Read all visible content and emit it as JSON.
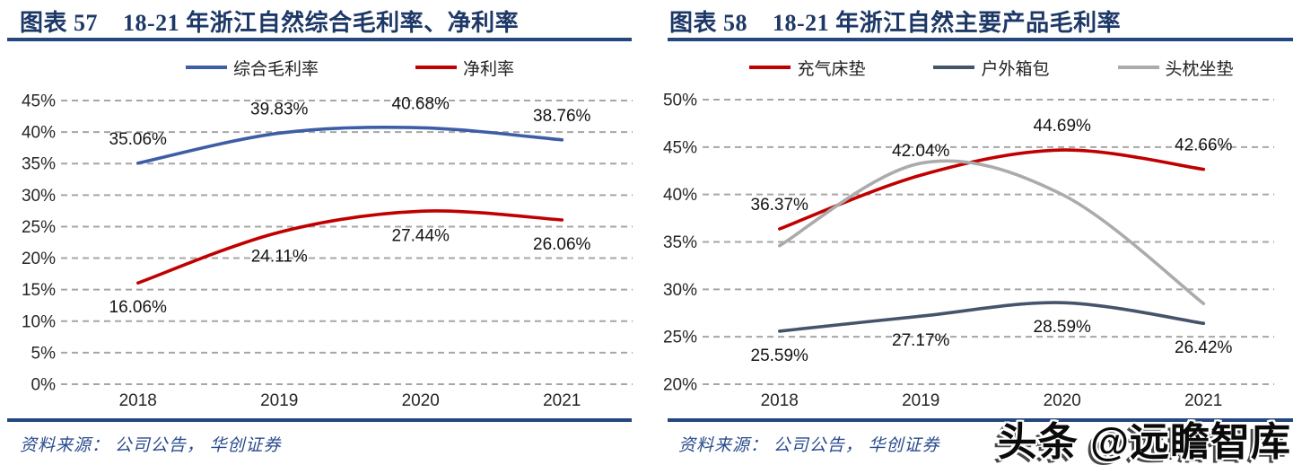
{
  "watermark": {
    "text": "头条 @远瞻智库"
  },
  "chart_data": [
    {
      "figure_label": "图表 57",
      "title": "18-21 年浙江自然综合毛利率、净利率",
      "source": "资料来源： 公司公告， 华创证券",
      "type": "line",
      "categories": [
        "2018",
        "2019",
        "2020",
        "2021"
      ],
      "ylim": [
        0,
        45
      ],
      "ytick_step": 5,
      "ytick_suffix": "%",
      "grid": "dashed-horizontal",
      "legend_position": "top",
      "series": [
        {
          "name": "综合毛利率",
          "color": "#3d5ea6",
          "values": [
            35.06,
            39.83,
            40.68,
            38.76
          ],
          "data_labels": "above"
        },
        {
          "name": "净利率",
          "color": "#c00000",
          "values": [
            16.06,
            24.11,
            27.44,
            26.06
          ],
          "data_labels": "below"
        }
      ]
    },
    {
      "figure_label": "图表 58",
      "title": "18-21 年浙江自然主要产品毛利率",
      "source": "资料来源： 公司公告， 华创证券",
      "type": "line",
      "categories": [
        "2018",
        "2019",
        "2020",
        "2021"
      ],
      "ylim": [
        20,
        50
      ],
      "ytick_step": 5,
      "ytick_suffix": "%",
      "grid": "dashed-horizontal",
      "legend_position": "top",
      "series": [
        {
          "name": "充气床垫",
          "color": "#c00000",
          "values": [
            36.37,
            42.04,
            44.69,
            42.66
          ],
          "data_labels": "above"
        },
        {
          "name": "户外箱包",
          "color": "#44546a",
          "values": [
            25.59,
            27.17,
            28.59,
            26.42
          ],
          "data_labels": "below"
        },
        {
          "name": "头枕坐垫",
          "color": "#ababab",
          "values": [
            34.6,
            43.3,
            40.0,
            28.5
          ],
          "data_labels": "none",
          "values_estimated": true
        }
      ]
    }
  ],
  "style": {
    "grid_color": "#a6a6a6",
    "tick_label_color": "#262626",
    "data_label_color": "#141414",
    "title_color": "#1d3867",
    "rule_color": "#24477f"
  }
}
